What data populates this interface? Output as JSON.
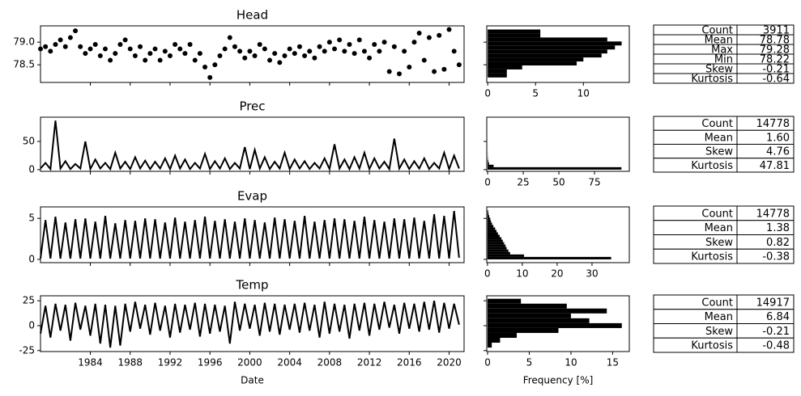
{
  "chart_data": [
    {
      "type": "scatter",
      "title": "Head",
      "color": "#000000",
      "x": [
        1979,
        1979.5,
        1980,
        1980.5,
        1981,
        1981.5,
        1982,
        1982.5,
        1983,
        1983.5,
        1984,
        1984.5,
        1985,
        1985.5,
        1986,
        1986.5,
        1987,
        1987.5,
        1988,
        1988.5,
        1989,
        1989.5,
        1990,
        1990.5,
        1991,
        1991.5,
        1992,
        1992.5,
        1993,
        1993.5,
        1994,
        1994.5,
        1995,
        1995.5,
        1996,
        1996.5,
        1997,
        1997.5,
        1998,
        1998.5,
        1999,
        1999.5,
        2000,
        2000.5,
        2001,
        2001.5,
        2002,
        2002.5,
        2003,
        2003.5,
        2004,
        2004.5,
        2005,
        2005.5,
        2006,
        2006.5,
        2007,
        2007.5,
        2008,
        2008.5,
        2009,
        2009.5,
        2010,
        2010.5,
        2011,
        2011.5,
        2012,
        2012.5,
        2013,
        2013.5,
        2014,
        2014.5,
        2015,
        2015.5,
        2016,
        2016.5,
        2017,
        2017.5,
        2018,
        2018.5,
        2019,
        2019.5,
        2020,
        2020.5,
        2021
      ],
      "values": [
        78.85,
        78.9,
        78.8,
        78.95,
        79.05,
        78.9,
        79.1,
        79.25,
        78.9,
        78.75,
        78.85,
        78.95,
        78.7,
        78.85,
        78.6,
        78.75,
        78.95,
        79.05,
        78.85,
        78.7,
        78.9,
        78.6,
        78.75,
        78.85,
        78.6,
        78.8,
        78.7,
        78.95,
        78.85,
        78.75,
        78.95,
        78.6,
        78.75,
        78.45,
        78.22,
        78.5,
        78.7,
        78.85,
        79.1,
        78.9,
        78.8,
        78.65,
        78.8,
        78.7,
        78.95,
        78.85,
        78.6,
        78.75,
        78.55,
        78.7,
        78.85,
        78.75,
        78.9,
        78.7,
        78.8,
        78.65,
        78.9,
        78.8,
        79.0,
        78.85,
        79.05,
        78.8,
        78.95,
        78.75,
        79.05,
        78.8,
        78.65,
        78.95,
        78.8,
        79.0,
        78.35,
        78.9,
        78.3,
        78.8,
        78.45,
        79.0,
        79.2,
        78.6,
        79.1,
        78.35,
        79.15,
        78.4,
        79.28,
        78.8,
        78.5
      ],
      "xlim": [
        1979,
        2021.5
      ],
      "ylim": [
        78.11,
        79.36
      ],
      "yticks": [
        78.5,
        {
          "value": 79,
          "label": "79.0"
        }
      ]
    },
    {
      "type": "histogram",
      "orientation": "horizontal",
      "color": "#000000",
      "bins": [
        78.22,
        78.308,
        78.397,
        78.485,
        78.573,
        78.662,
        78.75,
        78.838,
        78.927,
        79.015,
        79.103,
        79.192,
        79.28
      ],
      "values": [
        2.0,
        2.0,
        3.6,
        9.3,
        10.0,
        11.9,
        12.5,
        13.3,
        14.0,
        12.5,
        5.5,
        5.5
      ],
      "xlim": [
        -0.1,
        14.8
      ],
      "xticks": [
        0,
        5,
        10
      ]
    },
    {
      "type": "line",
      "title": "Prec",
      "color": "#000000",
      "x": [
        1979,
        1979.5,
        1980,
        1980.5,
        1981,
        1981.5,
        1982,
        1982.5,
        1983,
        1983.5,
        1984,
        1984.5,
        1985,
        1985.5,
        1986,
        1986.5,
        1987,
        1987.5,
        1988,
        1988.5,
        1989,
        1989.5,
        1990,
        1990.5,
        1991,
        1991.5,
        1992,
        1992.5,
        1993,
        1993.5,
        1994,
        1994.5,
        1995,
        1995.5,
        1996,
        1996.5,
        1997,
        1997.5,
        1998,
        1998.5,
        1999,
        1999.5,
        2000,
        2000.5,
        2001,
        2001.5,
        2002,
        2002.5,
        2003,
        2003.5,
        2004,
        2004.5,
        2005,
        2005.5,
        2006,
        2006.5,
        2007,
        2007.5,
        2008,
        2008.5,
        2009,
        2009.5,
        2010,
        2010.5,
        2011,
        2011.5,
        2012,
        2012.5,
        2013,
        2013.5,
        2014,
        2014.5,
        2015,
        2015.5,
        2016,
        2016.5,
        2017,
        2017.5,
        2018,
        2018.5,
        2019,
        2019.5,
        2020,
        2020.5,
        2021
      ],
      "values": [
        2,
        12,
        1,
        87,
        2,
        15,
        1,
        10,
        2,
        50,
        1,
        18,
        2,
        12,
        1,
        30,
        2,
        14,
        1,
        22,
        2,
        16,
        1,
        14,
        2,
        20,
        1,
        25,
        2,
        18,
        1,
        12,
        2,
        28,
        1,
        15,
        2,
        20,
        1,
        12,
        2,
        40,
        1,
        35,
        2,
        22,
        1,
        14,
        2,
        30,
        1,
        18,
        2,
        15,
        1,
        12,
        2,
        20,
        1,
        45,
        2,
        18,
        1,
        22,
        2,
        30,
        1,
        20,
        2,
        14,
        1,
        55,
        2,
        18,
        1,
        15,
        2,
        20,
        1,
        12,
        2,
        30,
        1,
        25,
        2
      ],
      "xlim": [
        1979,
        2021.5
      ],
      "ylim": [
        -3,
        93
      ],
      "yticks": [
        0,
        50
      ]
    },
    {
      "type": "histogram",
      "orientation": "horizontal",
      "color": "#000000",
      "bins": [
        0,
        4.35,
        8.7,
        13.05,
        17.4,
        21.75,
        26.1,
        30.45,
        34.8,
        39.15,
        43.5,
        47.85,
        52.2,
        56.55,
        60.9,
        65.25,
        69.6,
        73.95,
        78.3,
        82.65,
        87
      ],
      "values": [
        93.9,
        4.2,
        1.0,
        0.45,
        0.2,
        0.1,
        0.06,
        0.04,
        0.02,
        0.01,
        0.01,
        0.01,
        0.005,
        0.005,
        0,
        0,
        0,
        0,
        0,
        0.005
      ],
      "xlim": [
        -0.6,
        99.4
      ],
      "xticks": [
        0,
        25,
        50,
        75
      ]
    },
    {
      "type": "line",
      "title": "Evap",
      "color": "#000000",
      "x": [
        1979,
        1979.5,
        1980,
        1980.5,
        1981,
        1981.5,
        1982,
        1982.5,
        1983,
        1983.5,
        1984,
        1984.5,
        1985,
        1985.5,
        1986,
        1986.5,
        1987,
        1987.5,
        1988,
        1988.5,
        1989,
        1989.5,
        1990,
        1990.5,
        1991,
        1991.5,
        1992,
        1992.5,
        1993,
        1993.5,
        1994,
        1994.5,
        1995,
        1995.5,
        1996,
        1996.5,
        1997,
        1997.5,
        1998,
        1998.5,
        1999,
        1999.5,
        2000,
        2000.5,
        2001,
        2001.5,
        2002,
        2002.5,
        2003,
        2003.5,
        2004,
        2004.5,
        2005,
        2005.5,
        2006,
        2006.5,
        2007,
        2007.5,
        2008,
        2008.5,
        2009,
        2009.5,
        2010,
        2010.5,
        2011,
        2011.5,
        2012,
        2012.5,
        2013,
        2013.5,
        2014,
        2014.5,
        2015,
        2015.5,
        2016,
        2016.5,
        2017,
        2017.5,
        2018,
        2018.5,
        2019,
        2019.5,
        2020,
        2020.5,
        2021
      ],
      "values": [
        0.1,
        4.8,
        0.1,
        5.2,
        0.1,
        4.5,
        0.1,
        4.9,
        0.1,
        5.0,
        0.1,
        4.6,
        0.1,
        5.3,
        0.1,
        4.4,
        0.1,
        4.8,
        0.1,
        4.7,
        0.1,
        5.0,
        0.1,
        4.9,
        0.1,
        4.5,
        0.1,
        5.1,
        0.1,
        4.6,
        0.1,
        4.8,
        0.1,
        5.2,
        0.1,
        4.7,
        0.1,
        4.9,
        0.1,
        4.6,
        0.1,
        5.0,
        0.1,
        4.8,
        0.1,
        4.5,
        0.1,
        5.1,
        0.1,
        4.9,
        0.1,
        4.7,
        0.1,
        5.3,
        0.1,
        4.6,
        0.1,
        4.8,
        0.1,
        5.0,
        0.1,
        4.9,
        0.1,
        4.7,
        0.1,
        5.2,
        0.1,
        4.8,
        0.1,
        4.6,
        0.1,
        5.0,
        0.1,
        4.9,
        0.1,
        5.1,
        0.1,
        4.7,
        0.1,
        5.5,
        0.1,
        5.3,
        0.1,
        5.9,
        0.2
      ],
      "xlim": [
        1979,
        2021.5
      ],
      "ylim": [
        -0.4,
        6.4
      ],
      "yticks": [
        0,
        5
      ]
    },
    {
      "type": "histogram",
      "orientation": "horizontal",
      "color": "#000000",
      "bins": [
        0,
        0.3,
        0.6,
        0.9,
        1.2,
        1.5,
        1.8,
        2.1,
        2.4,
        2.7,
        3.0,
        3.3,
        3.6,
        3.9,
        4.2,
        4.5,
        4.8,
        5.1,
        5.4,
        5.7,
        6.0
      ],
      "values": [
        35.5,
        10.5,
        6.5,
        6,
        5.5,
        5.2,
        4.8,
        4.4,
        4,
        3.5,
        3,
        2.6,
        2.2,
        1.7,
        1.3,
        1,
        0.8,
        0.5,
        0.3,
        0.2
      ],
      "xlim": [
        -0.2,
        40.7
      ],
      "xticks": [
        0,
        10,
        20,
        30
      ]
    },
    {
      "type": "line",
      "title": "Temp",
      "xlabel": "Date",
      "color": "#000000",
      "x": [
        1979,
        1979.5,
        1980,
        1980.5,
        1981,
        1981.5,
        1982,
        1982.5,
        1983,
        1983.5,
        1984,
        1984.5,
        1985,
        1985.5,
        1986,
        1986.5,
        1987,
        1987.5,
        1988,
        1988.5,
        1989,
        1989.5,
        1990,
        1990.5,
        1991,
        1991.5,
        1992,
        1992.5,
        1993,
        1993.5,
        1994,
        1994.5,
        1995,
        1995.5,
        1996,
        1996.5,
        1997,
        1997.5,
        1998,
        1998.5,
        1999,
        1999.5,
        2000,
        2000.5,
        2001,
        2001.5,
        2002,
        2002.5,
        2003,
        2003.5,
        2004,
        2004.5,
        2005,
        2005.5,
        2006,
        2006.5,
        2007,
        2007.5,
        2008,
        2008.5,
        2009,
        2009.5,
        2010,
        2010.5,
        2011,
        2011.5,
        2012,
        2012.5,
        2013,
        2013.5,
        2014,
        2014.5,
        2015,
        2015.5,
        2016,
        2016.5,
        2017,
        2017.5,
        2018,
        2018.5,
        2019,
        2019.5,
        2020,
        2020.5,
        2021
      ],
      "values": [
        -8,
        20,
        -12,
        22,
        -5,
        21,
        -15,
        23,
        -4,
        20,
        -10,
        22,
        -18,
        21,
        -22,
        20,
        -20,
        22,
        -6,
        24,
        -3,
        21,
        -9,
        23,
        -5,
        20,
        -12,
        22,
        -7,
        21,
        -4,
        23,
        -11,
        22,
        -8,
        21,
        -6,
        20,
        -18,
        24,
        -5,
        22,
        -3,
        21,
        -10,
        23,
        -6,
        22,
        -9,
        21,
        -4,
        22,
        -7,
        23,
        -5,
        21,
        -12,
        24,
        -8,
        22,
        -6,
        21,
        -13,
        22,
        -5,
        23,
        -10,
        22,
        -4,
        24,
        -2,
        21,
        -8,
        23,
        -3,
        22,
        -6,
        24,
        -4,
        25,
        -7,
        23,
        -3,
        22,
        1
      ],
      "xlim": [
        1979,
        2021.5
      ],
      "ylim": [
        -26,
        30
      ],
      "yticks": [
        -25,
        0,
        25
      ],
      "xticks": [
        1984,
        1988,
        1992,
        1996,
        2000,
        2004,
        2008,
        2012,
        2016,
        2020
      ]
    },
    {
      "type": "histogram",
      "orientation": "horizontal",
      "xlabel": "Frequency [%]",
      "color": "#000000",
      "bins": [
        -22,
        -17.1,
        -12.2,
        -7.3,
        -2.4,
        2.5,
        7.4,
        12.3,
        17.2,
        22.1,
        27
      ],
      "values": [
        0.5,
        1.5,
        3.5,
        8.5,
        16.1,
        12.2,
        10.0,
        14.3,
        9.5,
        4.0
      ],
      "xlim": [
        -0.1,
        17
      ],
      "xticks": [
        0,
        5,
        10,
        15
      ]
    }
  ],
  "tables": [
    {
      "rows": [
        [
          "Count",
          "3911"
        ],
        [
          "Mean",
          "78.78"
        ],
        [
          "Max",
          "79.28"
        ],
        [
          "Min",
          "78.22"
        ],
        [
          "Skew",
          "-0.21"
        ],
        [
          "Kurtosis",
          "-0.64"
        ]
      ]
    },
    {
      "rows": [
        [
          "Count",
          "14778"
        ],
        [
          "Mean",
          "1.60"
        ],
        [
          "Skew",
          "4.76"
        ],
        [
          "Kurtosis",
          "47.81"
        ]
      ]
    },
    {
      "rows": [
        [
          "Count",
          "14778"
        ],
        [
          "Mean",
          "1.38"
        ],
        [
          "Skew",
          "0.82"
        ],
        [
          "Kurtosis",
          "-0.38"
        ]
      ]
    },
    {
      "rows": [
        [
          "Count",
          "14917"
        ],
        [
          "Mean",
          "6.84"
        ],
        [
          "Skew",
          "-0.21"
        ],
        [
          "Kurtosis",
          "-0.48"
        ]
      ]
    }
  ]
}
